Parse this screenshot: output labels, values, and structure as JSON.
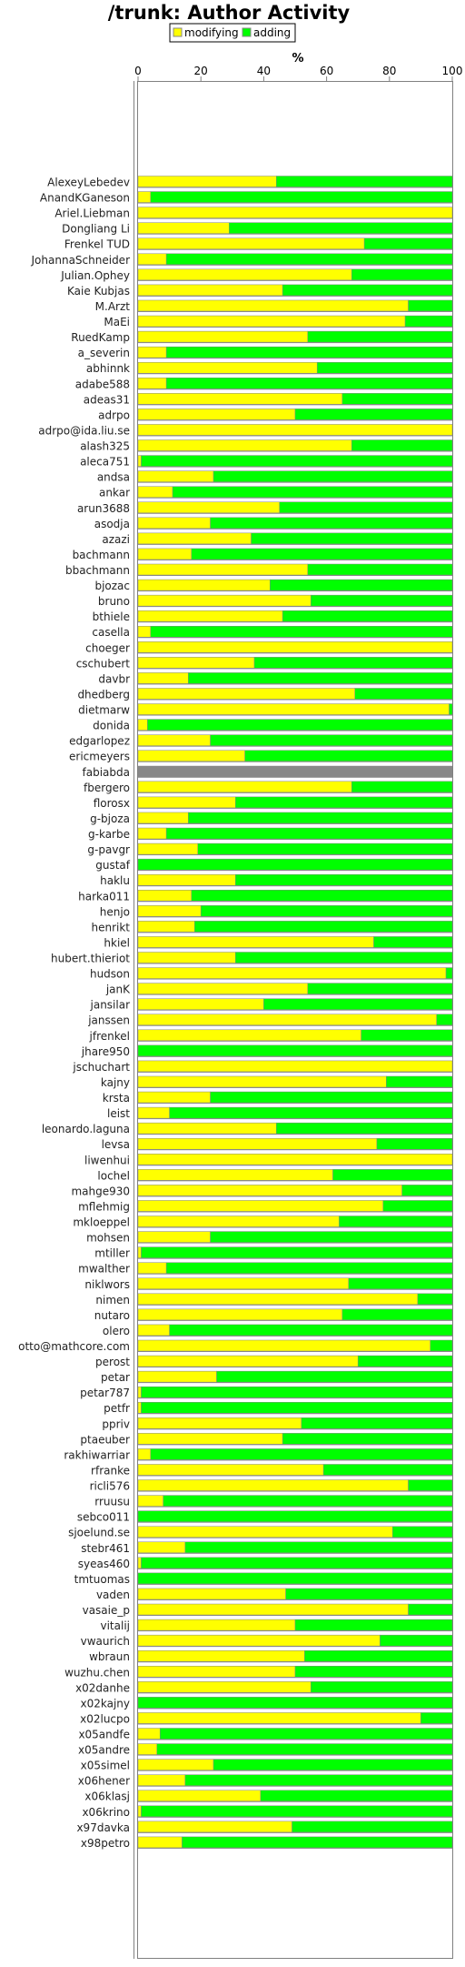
{
  "chart_data": {
    "type": "bar",
    "orientation": "horizontal",
    "stacked": true,
    "title": "/trunk: Author Activity",
    "xlabel": "%",
    "ylabel": "",
    "xlim": [
      0,
      100
    ],
    "xticks": [
      "0",
      "20",
      "40",
      "60",
      "80",
      "100"
    ],
    "legend": {
      "placement": "top-center",
      "entries": [
        "modifying",
        "adding"
      ]
    },
    "colors": {
      "modifying": "#ffff00",
      "adding": "#00ff00",
      "bar_edge": "#888888",
      "track": "#888888"
    },
    "categories": [
      "AlexeyLebedev",
      "AnandKGaneson",
      "Ariel.Liebman",
      "Dongliang Li",
      "Frenkel TUD",
      "JohannaSchneider",
      "Julian.Ophey",
      "Kaie Kubjas",
      "M.Arzt",
      "MaEi",
      "RuedKamp",
      "a_severin",
      "abhinnk",
      "adabe588",
      "adeas31",
      "adrpo",
      "adrpo@ida.liu.se",
      "alash325",
      "aleca751",
      "andsa",
      "ankar",
      "arun3688",
      "asodja",
      "azazi",
      "bachmann",
      "bbachmann",
      "bjozac",
      "bruno",
      "bthiele",
      "casella",
      "choeger",
      "cschubert",
      "davbr",
      "dhedberg",
      "dietmarw",
      "donida",
      "edgarlopez",
      "ericmeyers",
      "fabiabda",
      "fbergero",
      "florosx",
      "g-bjoza",
      "g-karbe",
      "g-pavgr",
      "gustaf",
      "haklu",
      "harka011",
      "henjo",
      "henrikt",
      "hkiel",
      "hubert.thieriot",
      "hudson",
      "janK",
      "jansilar",
      "janssen",
      "jfrenkel",
      "jhare950",
      "jschuchart",
      "kajny",
      "krsta",
      "leist",
      "leonardo.laguna",
      "levsa",
      "liwenhui",
      "lochel",
      "mahge930",
      "mflehmig",
      "mkloeppel",
      "mohsen",
      "mtiller",
      "mwalther",
      "niklwors",
      "nimen",
      "nutaro",
      "olero",
      "otto@mathcore.com",
      "perost",
      "petar",
      "petar787",
      "petfr",
      "ppriv",
      "ptaeuber",
      "rakhiwarriar",
      "rfranke",
      "ricli576",
      "rruusu",
      "sebco011",
      "sjoelund.se",
      "stebr461",
      "syeas460",
      "tmtuomas",
      "vaden",
      "vasaie_p",
      "vitalij",
      "vwaurich",
      "wbraun",
      "wuzhu.chen",
      "x02danhe",
      "x02kajny",
      "x02lucpo",
      "x05andfe",
      "x05andre",
      "x05simel",
      "x06hener",
      "x06klasj",
      "x06krino",
      "x97davka",
      "x98petro"
    ],
    "series": [
      {
        "name": "modifying",
        "values": [
          44,
          4,
          100,
          29,
          72,
          9,
          68,
          46,
          86,
          85,
          54,
          9,
          57,
          9,
          65,
          50,
          100,
          68,
          1,
          24,
          11,
          45,
          23,
          36,
          17,
          54,
          42,
          55,
          46,
          4,
          100,
          37,
          16,
          69,
          99,
          3,
          23,
          34,
          0,
          68,
          31,
          16,
          9,
          19,
          0,
          31,
          17,
          20,
          18,
          75,
          31,
          98,
          54,
          40,
          95,
          71,
          0,
          100,
          79,
          23,
          10,
          44,
          76,
          100,
          62,
          84,
          78,
          64,
          23,
          1,
          9,
          67,
          89,
          65,
          10,
          93,
          70,
          25,
          1,
          1,
          52,
          46,
          4,
          59,
          86,
          8,
          0,
          81,
          15,
          1,
          0,
          47,
          86,
          50,
          77,
          53,
          50,
          55,
          0,
          90,
          7,
          6,
          24,
          15,
          39,
          1,
          49,
          14
        ]
      },
      {
        "name": "adding",
        "values": [
          56,
          96,
          0,
          71,
          28,
          91,
          32,
          54,
          14,
          15,
          46,
          91,
          43,
          91,
          35,
          50,
          0,
          32,
          99,
          76,
          89,
          55,
          77,
          64,
          83,
          46,
          58,
          45,
          54,
          96,
          0,
          63,
          84,
          31,
          1,
          97,
          77,
          66,
          0,
          32,
          69,
          84,
          91,
          81,
          100,
          69,
          83,
          80,
          82,
          25,
          69,
          2,
          46,
          60,
          5,
          29,
          100,
          0,
          21,
          77,
          90,
          56,
          24,
          0,
          38,
          16,
          22,
          36,
          77,
          99,
          91,
          33,
          11,
          35,
          90,
          7,
          30,
          75,
          99,
          99,
          48,
          54,
          96,
          41,
          14,
          92,
          100,
          19,
          85,
          99,
          100,
          53,
          14,
          50,
          23,
          47,
          50,
          45,
          100,
          10,
          93,
          94,
          76,
          85,
          61,
          99,
          51,
          86
        ]
      }
    ]
  }
}
